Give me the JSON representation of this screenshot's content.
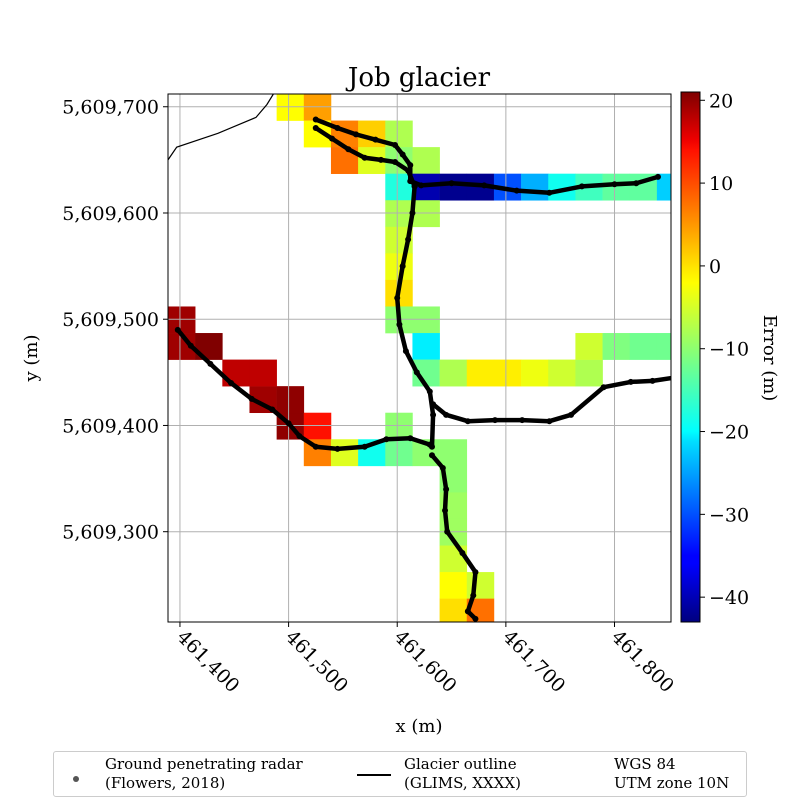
{
  "chart_data": {
    "type": "heatmap",
    "title": "Job glacier",
    "xlabel": "x (m)",
    "ylabel": "y (m)",
    "xlim": [
      461389,
      461852
    ],
    "ylim": [
      5609215,
      5609712
    ],
    "x_ticks": [
      461400,
      461500,
      461600,
      461700,
      461800
    ],
    "x_tick_labels": [
      "461,400",
      "461,500",
      "461,600",
      "461,700",
      "461,800"
    ],
    "y_ticks": [
      5609300,
      5609400,
      5609500,
      5609600,
      5609700
    ],
    "y_tick_labels": [
      "5,609,300",
      "5,609,400",
      "5,609,500",
      "5,609,600",
      "5,609,700"
    ],
    "grid": true,
    "cell_size_m": 25,
    "grid_origin": [
      461389,
      5609212
    ],
    "colorbar": {
      "label": "Error (m)",
      "range": [
        -43,
        21
      ],
      "ticks": [
        20,
        10,
        0,
        -10,
        -20,
        -30,
        -40
      ],
      "tick_labels": [
        "20",
        "10",
        "0",
        "−10",
        "−20",
        "−30",
        "−40"
      ],
      "colormap": "jet"
    },
    "cells": [
      {
        "col": 4,
        "row": 15,
        "value": -3
      },
      {
        "col": 5,
        "row": 15,
        "value": 3
      },
      {
        "col": 5,
        "row": 14,
        "value": -3
      },
      {
        "col": 6,
        "row": 14,
        "value": 5
      },
      {
        "col": 7,
        "row": 14,
        "value": 0
      },
      {
        "col": 8,
        "row": 14,
        "value": -8
      },
      {
        "col": 6,
        "row": 13,
        "value": 6
      },
      {
        "col": 7,
        "row": 13,
        "value": -5
      },
      {
        "col": 8,
        "row": 13,
        "value": -10
      },
      {
        "col": 9,
        "row": 13,
        "value": -8
      },
      {
        "col": 8,
        "row": 12,
        "value": -17
      },
      {
        "col": 9,
        "row": 12,
        "value": -40
      },
      {
        "col": 10,
        "row": 12,
        "value": -42
      },
      {
        "col": 11,
        "row": 12,
        "value": -42
      },
      {
        "col": 12,
        "row": 12,
        "value": -30
      },
      {
        "col": 13,
        "row": 12,
        "value": -24
      },
      {
        "col": 14,
        "row": 12,
        "value": -18
      },
      {
        "col": 15,
        "row": 12,
        "value": -15
      },
      {
        "col": 16,
        "row": 12,
        "value": -13
      },
      {
        "col": 17,
        "row": 12,
        "value": -13
      },
      {
        "col": 18,
        "row": 12,
        "value": -22
      },
      {
        "col": 8,
        "row": 11,
        "value": -8
      },
      {
        "col": 9,
        "row": 11,
        "value": -8
      },
      {
        "col": 8,
        "row": 10,
        "value": -6
      },
      {
        "col": 8,
        "row": 9,
        "value": -4
      },
      {
        "col": 8,
        "row": 8,
        "value": -1
      },
      {
        "col": 8,
        "row": 7,
        "value": -10
      },
      {
        "col": 9,
        "row": 7,
        "value": -10
      },
      {
        "col": 0,
        "row": 7,
        "value": 19
      },
      {
        "col": 0,
        "row": 6,
        "value": 19
      },
      {
        "col": 1,
        "row": 6,
        "value": 21
      },
      {
        "col": 2,
        "row": 5,
        "value": 17
      },
      {
        "col": 3,
        "row": 4,
        "value": 19
      },
      {
        "col": 4,
        "row": 3,
        "value": 20
      },
      {
        "col": 5,
        "row": 3,
        "value": 12
      },
      {
        "col": 3,
        "row": 5,
        "value": 17
      },
      {
        "col": 4,
        "row": 4,
        "value": 20
      },
      {
        "col": 9,
        "row": 6,
        "value": -20
      },
      {
        "col": 9,
        "row": 5,
        "value": -12
      },
      {
        "col": 10,
        "row": 5,
        "value": -8
      },
      {
        "col": 11,
        "row": 5,
        "value": -2
      },
      {
        "col": 12,
        "row": 5,
        "value": -2
      },
      {
        "col": 13,
        "row": 5,
        "value": -4
      },
      {
        "col": 14,
        "row": 5,
        "value": -6
      },
      {
        "col": 15,
        "row": 5,
        "value": -8
      },
      {
        "col": 15,
        "row": 6,
        "value": -6
      },
      {
        "col": 16,
        "row": 6,
        "value": -11
      },
      {
        "col": 17,
        "row": 6,
        "value": -12
      },
      {
        "col": 18,
        "row": 6,
        "value": -12
      },
      {
        "col": 5,
        "row": 2,
        "value": 5
      },
      {
        "col": 6,
        "row": 2,
        "value": -5
      },
      {
        "col": 7,
        "row": 2,
        "value": -18
      },
      {
        "col": 8,
        "row": 2,
        "value": -12
      },
      {
        "col": 8,
        "row": 3,
        "value": -10
      },
      {
        "col": 9,
        "row": 2,
        "value": -10
      },
      {
        "col": 10,
        "row": 2,
        "value": -10
      },
      {
        "col": 10,
        "row": 1,
        "value": -10
      },
      {
        "col": 10,
        "row": 0,
        "value": -9
      },
      {
        "col": 10,
        "row": -1,
        "value": -9
      },
      {
        "col": 10,
        "row": -2,
        "value": -6
      },
      {
        "col": 10,
        "row": -3,
        "value": -3
      },
      {
        "col": 11,
        "row": -3,
        "value": -6
      },
      {
        "col": 10,
        "row": -4,
        "value": -1
      },
      {
        "col": 11,
        "row": -4,
        "value": 6
      }
    ],
    "gpr_tracks": [
      [
        [
          461525,
          5609688
        ],
        [
          461545,
          5609680
        ],
        [
          461562,
          5609674
        ],
        [
          461580,
          5609669
        ],
        [
          461598,
          5609664
        ],
        [
          461605,
          5609655
        ],
        [
          461612,
          5609645
        ],
        [
          461612,
          5609630
        ],
        [
          461622,
          5609626
        ],
        [
          461650,
          5609628
        ],
        [
          461680,
          5609626
        ],
        [
          461710,
          5609621
        ],
        [
          461740,
          5609619
        ],
        [
          461770,
          5609625
        ],
        [
          461800,
          5609627
        ],
        [
          461820,
          5609628
        ],
        [
          461840,
          5609634
        ]
      ],
      [
        [
          461525,
          5609680
        ],
        [
          461540,
          5609670
        ],
        [
          461555,
          5609660
        ],
        [
          461570,
          5609652
        ],
        [
          461585,
          5609650
        ],
        [
          461598,
          5609648
        ],
        [
          461610,
          5609640
        ],
        [
          461616,
          5609625
        ]
      ],
      [
        [
          461616,
          5609625
        ],
        [
          461614,
          5609600
        ],
        [
          461610,
          5609575
        ],
        [
          461605,
          5609550
        ],
        [
          461600,
          5609520
        ],
        [
          461602,
          5609495
        ],
        [
          461608,
          5609470
        ],
        [
          461618,
          5609450
        ],
        [
          461630,
          5609432
        ],
        [
          461633,
          5609410
        ],
        [
          461632,
          5609380
        ]
      ],
      [
        [
          461398,
          5609490
        ],
        [
          461410,
          5609475
        ],
        [
          461428,
          5609458
        ],
        [
          461447,
          5609440
        ],
        [
          461466,
          5609425
        ],
        [
          461485,
          5609415
        ],
        [
          461500,
          5609402
        ],
        [
          461510,
          5609390
        ],
        [
          461525,
          5609380
        ],
        [
          461545,
          5609378
        ],
        [
          461570,
          5609380
        ],
        [
          461590,
          5609387
        ],
        [
          461612,
          5609388
        ],
        [
          461630,
          5609382
        ]
      ],
      [
        [
          461633,
          5609420
        ],
        [
          461645,
          5609410
        ],
        [
          461665,
          5609404
        ],
        [
          461690,
          5609405
        ],
        [
          461715,
          5609405
        ],
        [
          461740,
          5609404
        ],
        [
          461760,
          5609410
        ],
        [
          461790,
          5609436
        ],
        [
          461815,
          5609441
        ],
        [
          461835,
          5609442
        ],
        [
          461855,
          5609445
        ]
      ],
      [
        [
          461632,
          5609372
        ],
        [
          461642,
          5609360
        ],
        [
          461645,
          5609340
        ],
        [
          461644,
          5609320
        ],
        [
          461646,
          5609300
        ],
        [
          461660,
          5609280
        ],
        [
          461672,
          5609262
        ],
        [
          461670,
          5609240
        ],
        [
          461665,
          5609225
        ],
        [
          461672,
          5609218
        ]
      ]
    ],
    "glacier_outline": [
      [
        461389,
        5609650
      ],
      [
        461397,
        5609662
      ],
      [
        461435,
        5609675
      ],
      [
        461470,
        5609690
      ],
      [
        461480,
        5609702
      ],
      [
        461486,
        5609712
      ]
    ]
  },
  "legend": {
    "gpr_label": "Ground penetrating radar\n(Flowers, 2018)",
    "outline_label": "Glacier outline\n(GLIMS, XXXX)",
    "crs_label": "WGS 84\nUTM zone 10N"
  },
  "colors": {
    "track": "#000000",
    "grid": "#b0b0b0",
    "outline": "#000000"
  }
}
